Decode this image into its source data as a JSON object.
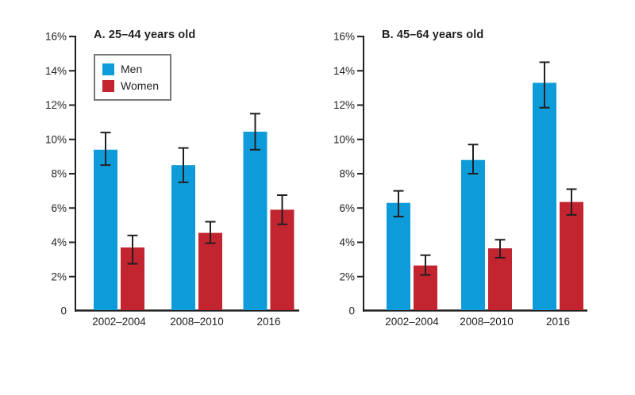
{
  "figure": {
    "background": "#ffffff",
    "text_color": "#231F20",
    "axis_color": "#231F20",
    "legend_border_color": "#77787B"
  },
  "chart_data": [
    {
      "type": "bar",
      "title": "A. 25–44 years old",
      "categories": [
        "2002–2004",
        "2008–2010",
        "2016"
      ],
      "xlabel": "",
      "ylabel": "",
      "ylim": [
        0,
        16
      ],
      "ytick_values": [
        0,
        2,
        4,
        6,
        8,
        10,
        12,
        14,
        16
      ],
      "ytick_labels": [
        "0",
        "2%",
        "4%",
        "6%",
        "8%",
        "10%",
        "12%",
        "14%",
        "16%"
      ],
      "grid": false,
      "legend_position": "upper-left",
      "error_bars": true,
      "series": [
        {
          "name": "Men",
          "color": "#0D9CD9",
          "values": [
            9.4,
            8.5,
            10.45
          ],
          "error_intervals": [
            [
              8.5,
              10.4
            ],
            [
              7.5,
              9.5
            ],
            [
              9.4,
              11.5
            ]
          ]
        },
        {
          "name": "Women",
          "color": "#C22430",
          "values": [
            3.7,
            4.55,
            5.9
          ],
          "error_intervals": [
            [
              2.75,
              4.4
            ],
            [
              3.95,
              5.2
            ],
            [
              5.05,
              6.75
            ]
          ]
        }
      ]
    },
    {
      "type": "bar",
      "title": "B. 45–64 years old",
      "categories": [
        "2002–2004",
        "2008–2010",
        "2016"
      ],
      "xlabel": "",
      "ylabel": "",
      "ylim": [
        0,
        16
      ],
      "ytick_values": [
        0,
        2,
        4,
        6,
        8,
        10,
        12,
        14,
        16
      ],
      "ytick_labels": [
        "0",
        "2%",
        "4%",
        "6%",
        "8%",
        "10%",
        "12%",
        "14%",
        "16%"
      ],
      "grid": false,
      "legend_position": "none",
      "error_bars": true,
      "series": [
        {
          "name": "Men",
          "color": "#0D9CD9",
          "values": [
            6.3,
            8.8,
            13.3
          ],
          "error_intervals": [
            [
              5.5,
              7.0
            ],
            [
              8.0,
              9.7
            ],
            [
              11.85,
              14.5
            ]
          ]
        },
        {
          "name": "Women",
          "color": "#C22430",
          "values": [
            2.65,
            3.65,
            6.35
          ],
          "error_intervals": [
            [
              2.1,
              3.25
            ],
            [
              3.1,
              4.15
            ],
            [
              5.6,
              7.1
            ]
          ]
        }
      ]
    }
  ]
}
